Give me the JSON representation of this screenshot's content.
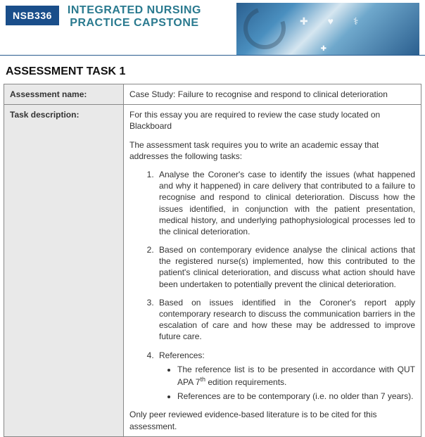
{
  "header": {
    "course_code": "NSB336",
    "course_title_line1": "INTEGRATED NURSING",
    "course_title_line2": "PRACTICE CAPSTONE",
    "badge_bg": "#1a4e8a",
    "title_color": "#2a7a8f"
  },
  "section_title": "ASSESSMENT TASK 1",
  "rows": {
    "name_label": "Assessment name:",
    "name_value": "Case Study: Failure to recognise and respond to clinical deterioration",
    "desc_label": "Task description:",
    "desc_intro1": "For this essay you are required to review the case study located on Blackboard",
    "desc_intro2": "The assessment task requires you to write an academic essay that addresses the following tasks:",
    "task1": "Analyse the Coroner's case to identify the issues (what happened and why it happened) in  care delivery that contributed to a failure to recognise and respond to clinical deterioration. Discuss how  the issues identified, in conjunction with the patient presentation, medical history, and underlying pathophysiological processes led to the clinical deterioration.",
    "task2": "Based on contemporary evidence analyse the clinical actions that the registered nurse(s) implemented, how this contributed to the patient's clinical deterioration, and discuss what action should have been undertaken to potentially prevent the clinical deterioration.",
    "task3": "Based on issues identified in the Coroner's report apply contemporary research to discuss the communication barriers in the escalation of care and how these may be addressed to improve future care.",
    "task4_label": "References:",
    "ref1_a": "The reference list is to be presented in accordance with QUT APA 7",
    "ref1_b": " edition requirements.",
    "ref2": "References are to be contemporary (i.e. no older than 7 years).",
    "closing": "Only peer reviewed evidence-based literature is to be cited for this assessment."
  },
  "style": {
    "label_bg": "#e9e9e9",
    "border_color": "#888888",
    "body_font_size": 12,
    "heading_font_size": 16
  }
}
